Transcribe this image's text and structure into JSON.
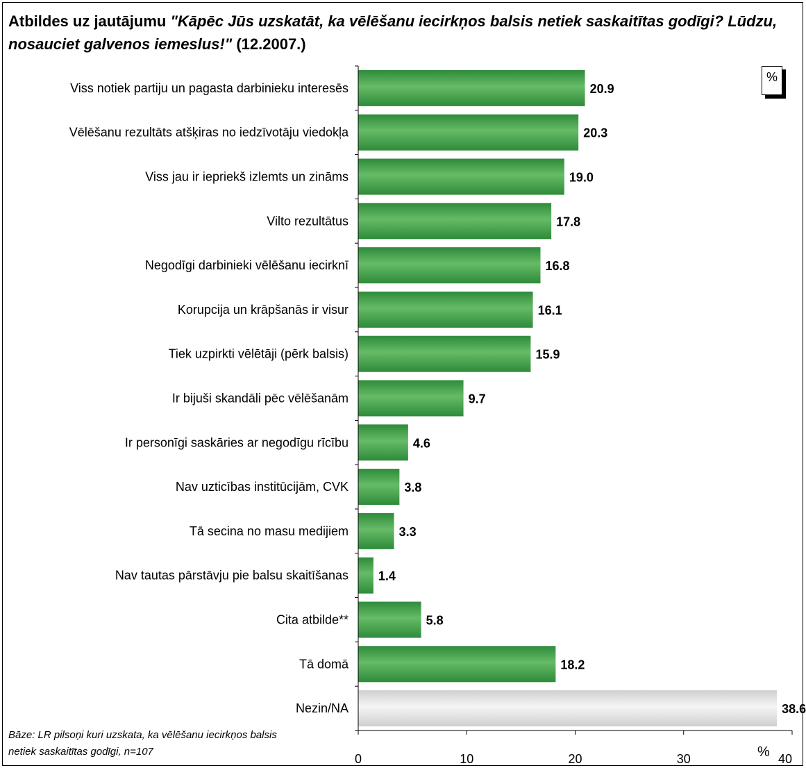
{
  "title": {
    "prefix": "Atbildes uz jautājumu ",
    "question": "\"Kāpēc Jūs uzskatāt, ka vēlēšanu iecirkņos balsis netiek saskaitītas godīgi? Lūdzu, nosauciet galvenos iemeslus!\"",
    "date": " (12.2007.)"
  },
  "unit_badge": "%",
  "axis_unit": "%",
  "base_note": "Bāze: LR pilsoņi kuri uzskata, ka vēlēšanu iecirkņos balsis netiek saskaitītas godīgi, n=107",
  "colors": {
    "bar_green": "#2e8b3a",
    "bar_green_light": "#66bb66",
    "bar_gray": "#d0d0d0",
    "bar_gray_light": "#f4f4f4"
  },
  "chart_data": {
    "type": "bar",
    "orientation": "horizontal",
    "categories": [
      "Viss notiek partiju un pagasta darbinieku interesēs",
      "Vēlēšanu rezultāts atšķiras no iedzīvotāju viedokļa",
      "Viss jau ir iepriekš izlemts un zināms",
      "Vilto rezultātus",
      "Negodīgi darbinieki vēlēšanu iecirknī",
      "Korupcija un krāpšanās ir visur",
      "Tiek uzpirkti vēlētāji (pērk balsis)",
      "Ir bijuši skandāli pēc vēlēšanām",
      "Ir personīgi saskāries ar negodīgu rīcību",
      "Nav uzticības institūcijām, CVK",
      "Tā secina no masu medijiem",
      "Nav tautas pārstāvju pie balsu skaitīšanas",
      "Cita atbilde**",
      "Tā domā",
      "Nezin/NA"
    ],
    "values": [
      20.9,
      20.3,
      19.0,
      17.8,
      16.8,
      16.1,
      15.9,
      9.7,
      4.6,
      3.8,
      3.3,
      1.4,
      5.8,
      18.2,
      38.6
    ],
    "value_labels": [
      "20.9",
      "20.3",
      "19.0",
      "17.8",
      "16.8",
      "16.1",
      "15.9",
      "9.7",
      "4.6",
      "3.8",
      "3.3",
      "1.4",
      "5.8",
      "18.2",
      "38.6"
    ],
    "bar_colors": [
      "green",
      "green",
      "green",
      "green",
      "green",
      "green",
      "green",
      "green",
      "green",
      "green",
      "green",
      "green",
      "green",
      "green",
      "gray"
    ],
    "xlim": [
      0,
      40
    ],
    "xticks": [
      0,
      10,
      20,
      30,
      40
    ],
    "xtick_labels": [
      "0",
      "10",
      "20",
      "30",
      "40"
    ],
    "grid": false,
    "legend": "none"
  }
}
